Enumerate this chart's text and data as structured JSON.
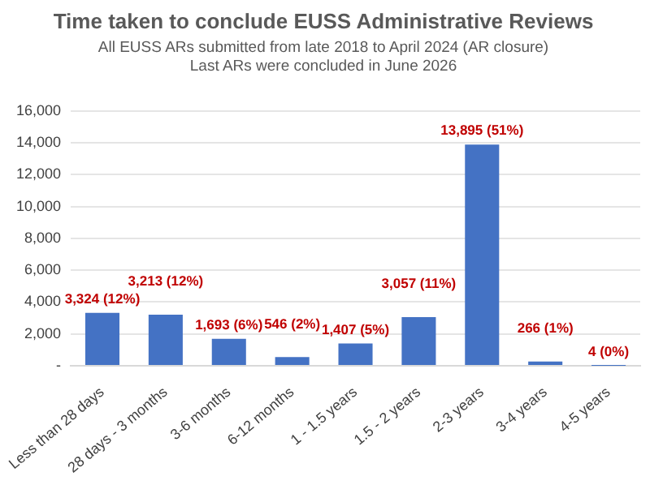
{
  "chart_data": {
    "type": "bar",
    "title": "Time taken to conclude EUSS Administrative Reviews",
    "subtitle": "All EUSS ARs submitted from late 2018 to April 2024 (AR closure)\nLast ARs were concluded in June 2026",
    "categories": [
      "Less than 28 days",
      "28 days - 3 months",
      "3-6 months",
      "6-12 months",
      "1 - 1.5 years",
      "1.5 - 2 years",
      "2-3 years",
      "3-4 years",
      "4-5 years"
    ],
    "values": [
      3324,
      3213,
      1693,
      546,
      1407,
      3057,
      13895,
      266,
      4
    ],
    "value_labels": [
      "3,324 (12%)",
      "3,213 (12%)",
      "1,693 (6%)",
      "546 (2%)",
      "1,407 (5%)",
      "3,057 (11%)",
      "13,895 (51%)",
      "266 (1%)",
      "4 (0%)"
    ],
    "color": "#4472c4",
    "ylim": [
      0,
      16000
    ],
    "yticks": [
      {
        "value": 0,
        "label": "-"
      },
      {
        "value": 2000,
        "label": "2,000"
      },
      {
        "value": 4000,
        "label": "4,000"
      },
      {
        "value": 6000,
        "label": "6,000"
      },
      {
        "value": 8000,
        "label": "8,000"
      },
      {
        "value": 10000,
        "label": "10,000"
      },
      {
        "value": 12000,
        "label": "12,000"
      },
      {
        "value": 14000,
        "label": "14,000"
      },
      {
        "value": 16000,
        "label": "16,000"
      }
    ],
    "grid": "y",
    "legend": false
  }
}
